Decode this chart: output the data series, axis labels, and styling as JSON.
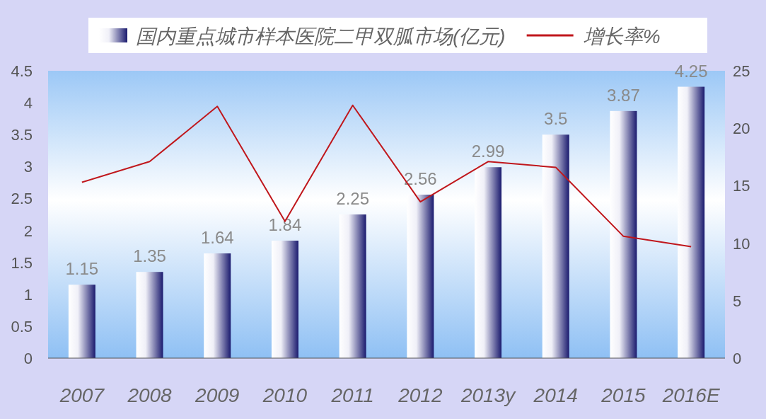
{
  "chart_data": {
    "type": "bar",
    "categories": [
      "2007",
      "2008",
      "2009",
      "2010",
      "2011",
      "2012",
      "2013y",
      "2014",
      "2015",
      "2016E"
    ],
    "series": [
      {
        "name": "国内重点城市样本医院二甲双胍市场(亿元)",
        "color": "#1a1a6e",
        "values": [
          1.15,
          1.35,
          1.64,
          1.84,
          2.25,
          2.56,
          2.99,
          3.5,
          3.87,
          4.25
        ],
        "value_labels": [
          "1.15",
          "1.35",
          "1.64",
          "1.84",
          "2.25",
          "2.56",
          "2.99",
          "3.5",
          "3.87",
          "4.25"
        ]
      },
      {
        "name": "增长率%",
        "type": "line",
        "axis": "y2",
        "color": "#c0171c",
        "values": [
          15.3,
          17.1,
          21.9,
          11.9,
          22.0,
          13.6,
          17.1,
          16.6,
          10.6,
          9.7
        ]
      }
    ],
    "ylim": [
      0,
      4.5
    ],
    "yticks": [
      0,
      0.5,
      1,
      1.5,
      2,
      2.5,
      3,
      3.5,
      4,
      4.5
    ],
    "y2lim": [
      0,
      25
    ],
    "y2ticks": [
      0,
      5,
      10,
      15,
      20,
      25
    ],
    "legend": "top",
    "grid": false,
    "line_style": "solid"
  }
}
